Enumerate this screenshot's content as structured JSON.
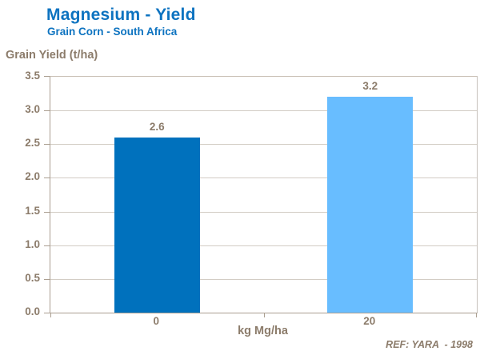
{
  "header": {
    "title": "Magnesium - Yield",
    "subtitle": "Grain Corn - South Africa"
  },
  "chart_data": {
    "type": "bar",
    "title": "Magnesium - Yield",
    "subtitle": "Grain Corn - South Africa",
    "categories": [
      "0",
      "20"
    ],
    "values": [
      2.6,
      3.2
    ],
    "value_labels": [
      "2.6",
      "3.2"
    ],
    "bar_colors": [
      "#0071bd",
      "#68bdff"
    ],
    "xlabel": "kg Mg/ha",
    "ylabel": "Grain Yield (t/ha)",
    "ylim": [
      0,
      3.5
    ],
    "ytick_step": 0.5,
    "ytick_labels": [
      "0.0",
      "0.5",
      "1.0",
      "1.5",
      "2.0",
      "2.5",
      "3.0",
      "3.5"
    ],
    "grid": true,
    "legend": false
  },
  "footer": {
    "reference": "REF: YARA  - 1998"
  },
  "colors": {
    "title_blue": "#0d73c0",
    "axis_text": "#8c7c6b",
    "bar_dark": "#0071bd",
    "bar_light": "#68bdff",
    "gridline": "#d2ccc4",
    "axis_line": "#aa9e90"
  }
}
